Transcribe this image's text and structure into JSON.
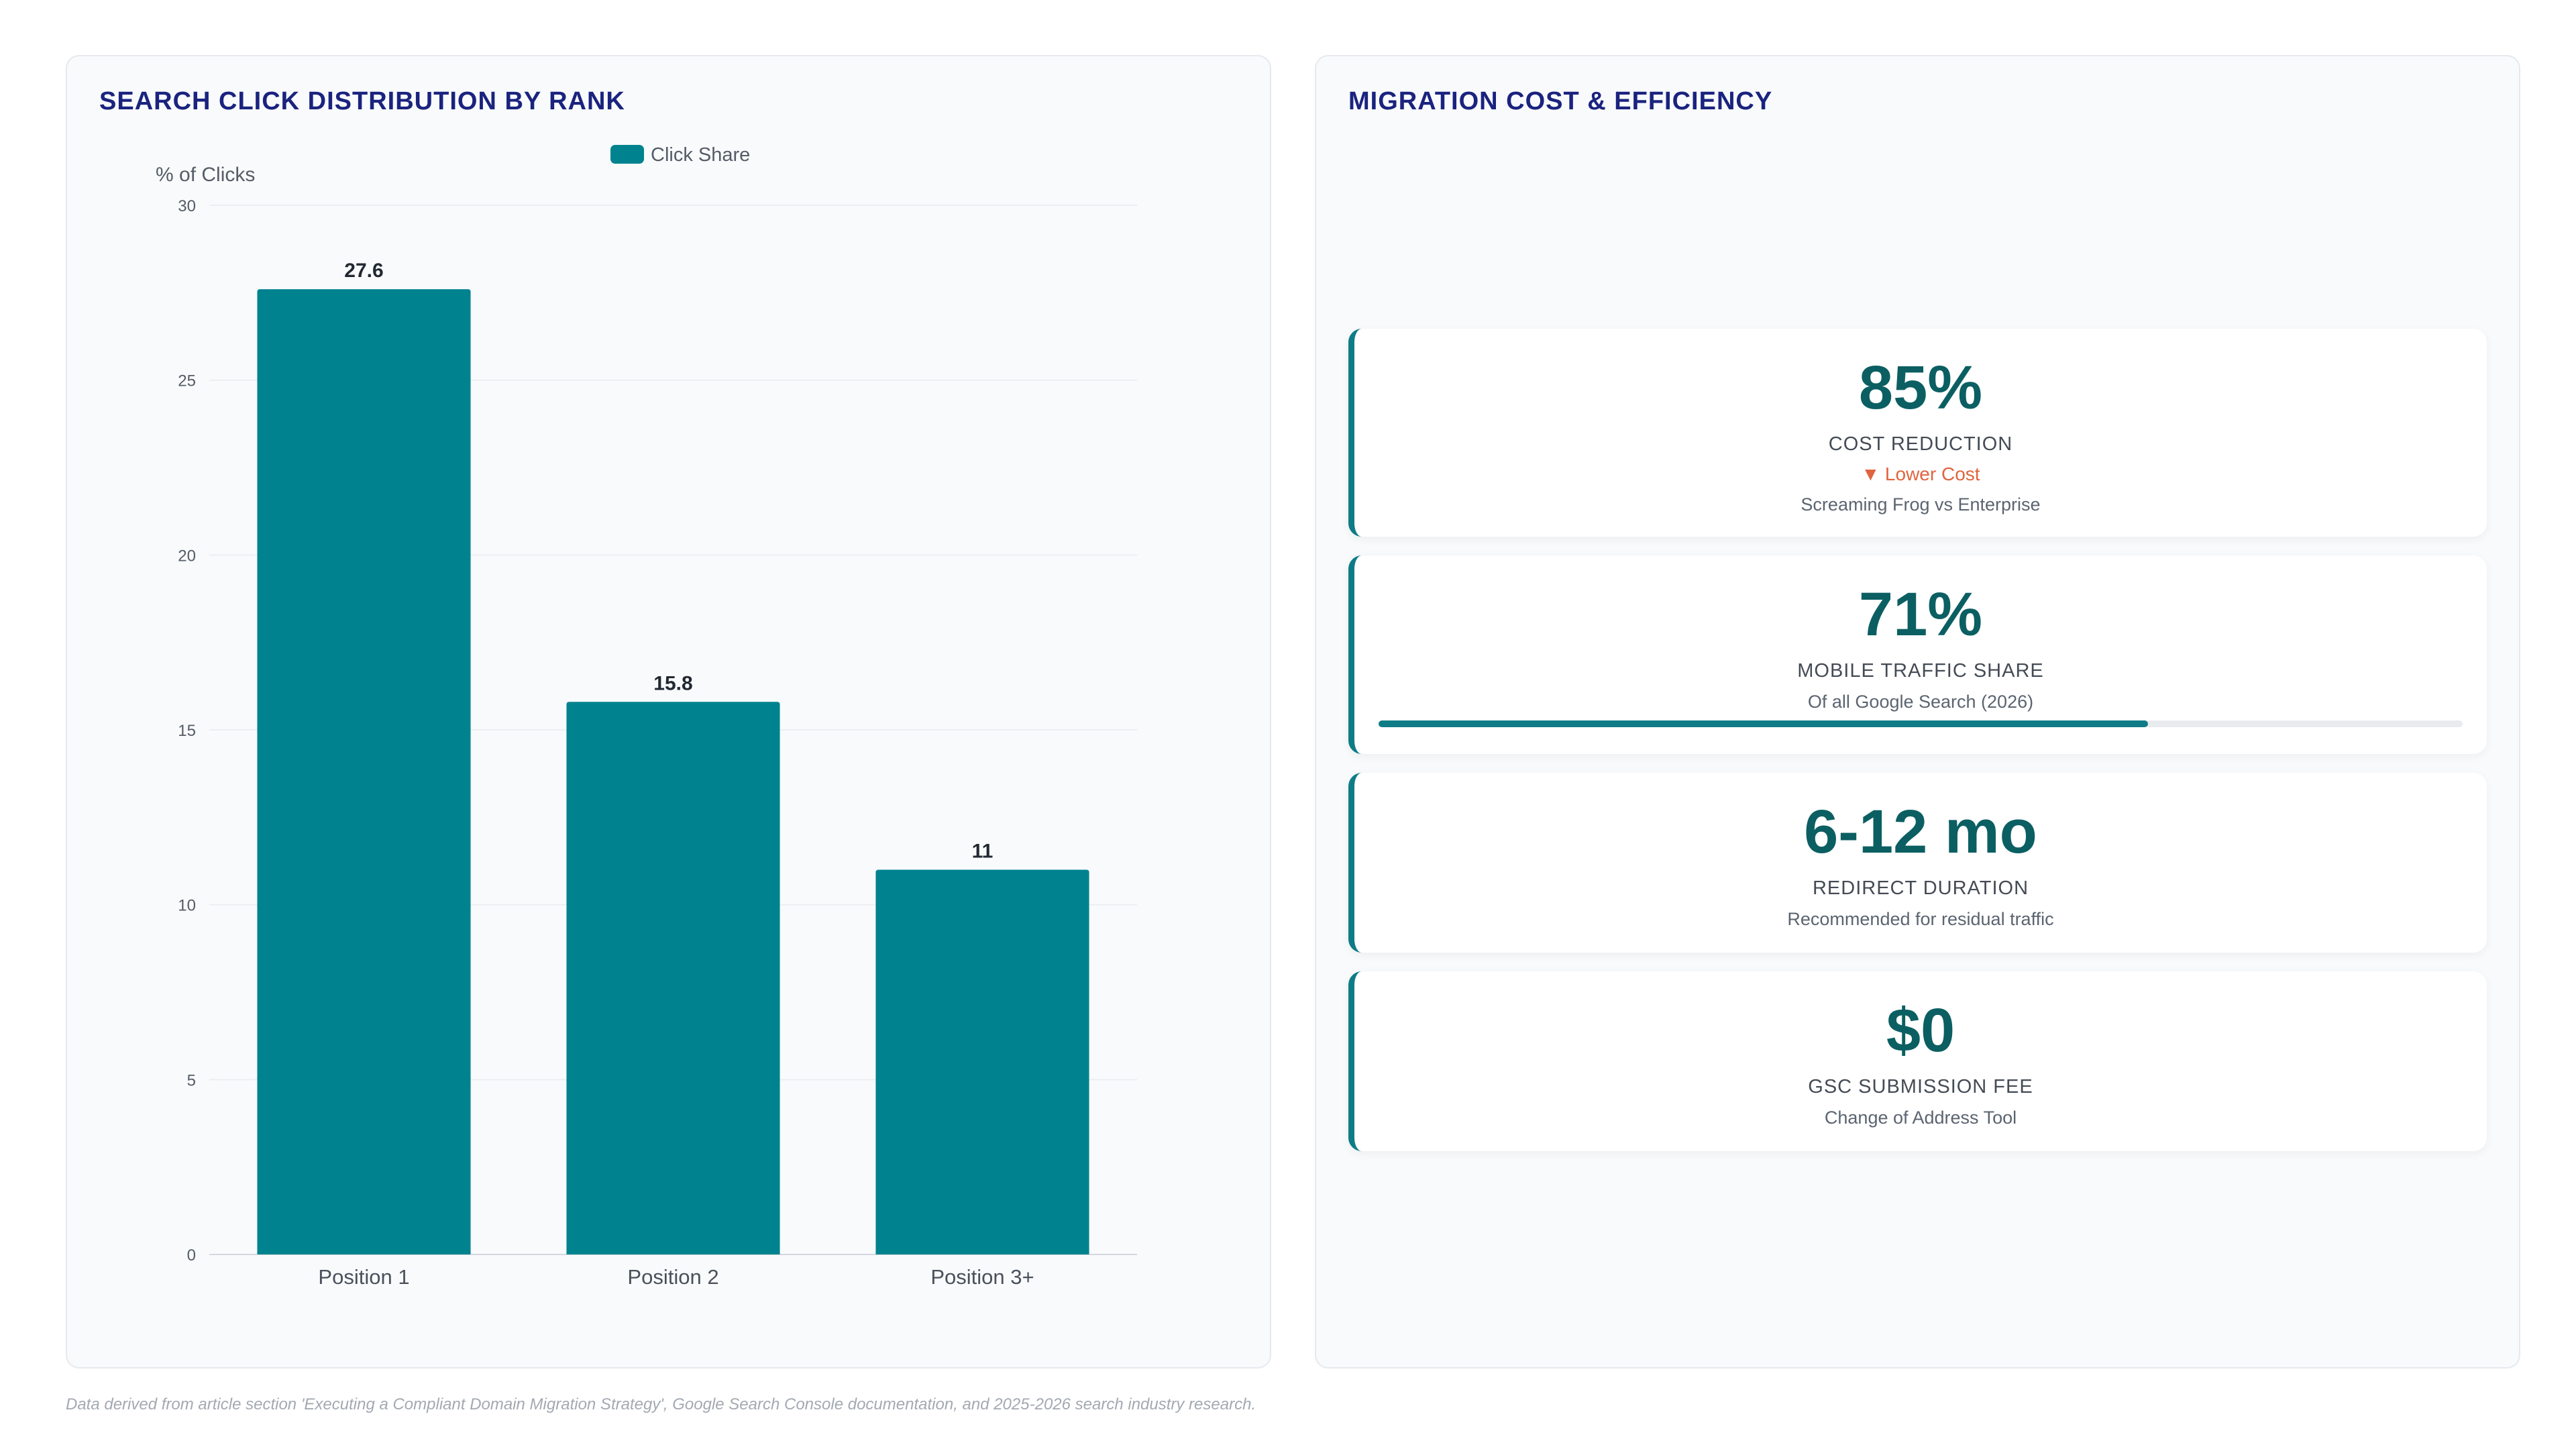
{
  "left_panel": {
    "title": "SEARCH CLICK DISTRIBUTION BY RANK"
  },
  "right_panel": {
    "title": "MIGRATION COST & EFFICIENCY"
  },
  "chart_data": {
    "type": "bar",
    "title": "SEARCH CLICK DISTRIBUTION BY RANK",
    "ylabel": "% of Clicks",
    "xlabel": "",
    "categories": [
      "Position 1",
      "Position 2",
      "Position 3+"
    ],
    "series": [
      {
        "name": "Click Share",
        "values": [
          27.6,
          15.8,
          11
        ],
        "labels": [
          "27.6",
          "15.8",
          "11"
        ]
      }
    ],
    "ylim": [
      0,
      30
    ],
    "yticks": [
      0,
      5,
      10,
      15,
      20,
      25,
      30
    ],
    "grid": true,
    "legend": "top-center",
    "bar_color": "#00838f"
  },
  "metrics": [
    {
      "value": "85%",
      "label": "COST REDUCTION",
      "trend": "▼ Lower Cost",
      "sub": "Screaming Frog vs Enterprise"
    },
    {
      "value": "71%",
      "label": "MOBILE TRAFFIC SHARE",
      "sub": "Of all Google Search (2026)",
      "progress": 0.71
    },
    {
      "value": "6-12 mo",
      "label": "REDIRECT DURATION",
      "sub": "Recommended for residual traffic"
    },
    {
      "value": "$0",
      "label": "GSC SUBMISSION FEE",
      "sub": "Change of Address Tool"
    }
  ],
  "footnote": "Data derived from article section 'Executing a Compliant Domain Migration Strategy', Google Search Console documentation, and 2025-2026 search industry research."
}
